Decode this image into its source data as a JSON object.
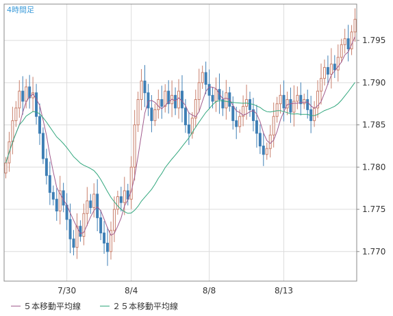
{
  "timeframe_label": "4時間足",
  "legend": {
    "ma5": "５本移動平均線",
    "ma25": "２５本移動平均線"
  },
  "colors": {
    "up": "#c87e6a",
    "down": "#3e7fb5",
    "ma5": "#a05a8c",
    "ma25": "#2fa67c",
    "grid": "#dcdcdc",
    "frame": "#888888"
  },
  "chart_data": {
    "type": "candlestick",
    "y_ticks": [
      1.77,
      1.775,
      1.78,
      1.785,
      1.79,
      1.795
    ],
    "y_tick_labels": [
      "1.770",
      "1.775",
      "1.780",
      "1.785",
      "1.790",
      "1.795"
    ],
    "ylim": [
      1.7665,
      1.7993
    ],
    "x_tick_labels": [
      {
        "label": "7/30",
        "index": 18
      },
      {
        "label": "8/4",
        "index": 37
      },
      {
        "label": "8/8",
        "index": 60
      },
      {
        "label": "8/13",
        "index": 82
      }
    ],
    "closes": [
      1.7805,
      1.783,
      1.7855,
      1.787,
      1.789,
      1.7878,
      1.7895,
      1.7882,
      1.7888,
      1.786,
      1.784,
      1.781,
      1.779,
      1.777,
      1.7762,
      1.7748,
      1.7772,
      1.7755,
      1.7738,
      1.7715,
      1.7705,
      1.773,
      1.7718,
      1.7745,
      1.776,
      1.7752,
      1.7768,
      1.774,
      1.7722,
      1.771,
      1.77,
      1.7725,
      1.775,
      1.7765,
      1.7758,
      1.7772,
      1.7762,
      1.78,
      1.785,
      1.788,
      1.7902,
      1.7888,
      1.787,
      1.7855,
      1.7868,
      1.788,
      1.7872,
      1.789,
      1.7875,
      1.7885,
      1.787,
      1.789,
      1.787,
      1.785,
      1.784,
      1.7858,
      1.788,
      1.79,
      1.7912,
      1.7898,
      1.7885,
      1.7878,
      1.7892,
      1.788,
      1.787,
      1.7888,
      1.7872,
      1.7855,
      1.7848,
      1.786,
      1.7872,
      1.788,
      1.7868,
      1.7855,
      1.784,
      1.7825,
      1.7815,
      1.7822,
      1.7838,
      1.786,
      1.7875,
      1.7885,
      1.787,
      1.788,
      1.7865,
      1.7878,
      1.7885,
      1.7875,
      1.788,
      1.7868,
      1.7855,
      1.787,
      1.789,
      1.7905,
      1.7918,
      1.791,
      1.7922,
      1.7915,
      1.793,
      1.7945,
      1.7952,
      1.794,
      1.796,
      1.7975
    ],
    "series": [
      {
        "name": "５本移動平均線",
        "period": 5
      },
      {
        "name": "２５本移動平均線",
        "period": 25
      }
    ],
    "grid": true
  }
}
